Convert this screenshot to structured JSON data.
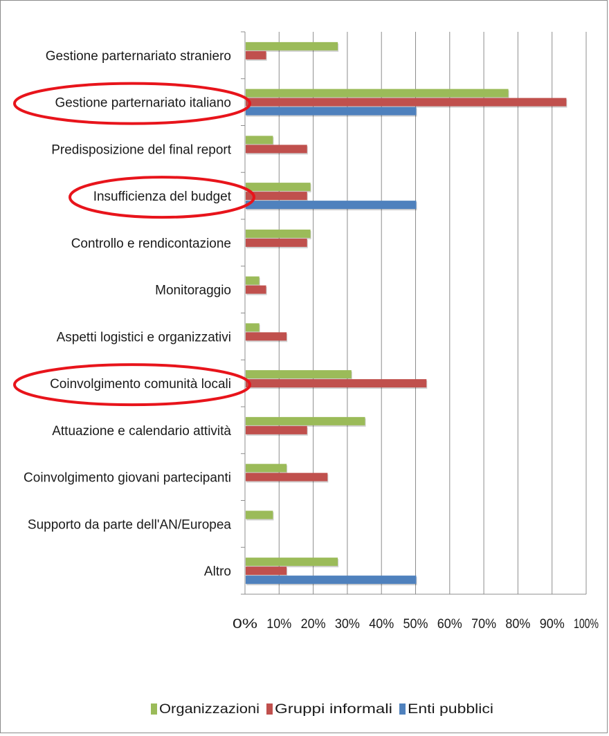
{
  "chart_data": {
    "type": "bar",
    "orientation": "horizontal",
    "categories": [
      "Gestione parternariato straniero",
      "Gestione parternariato italiano",
      "Predisposizione del final report",
      "Insufficienza del budget",
      "Controllo e rendicontazione",
      "Monitoraggio",
      "Aspetti logistici e organizzativi",
      "Coinvolgimento comunità locali",
      "Attuazione e calendario attività",
      "Coinvolgimento giovani partecipanti",
      "Supporto da parte dell'AN/Europea",
      "Altro"
    ],
    "series": [
      {
        "name": "Organizzazioni",
        "color": "#9bbb59",
        "values": [
          27,
          77,
          8,
          19,
          19,
          4,
          4,
          31,
          35,
          12,
          8,
          27
        ]
      },
      {
        "name": "Gruppi informali",
        "color": "#c0504d",
        "values": [
          6,
          94,
          18,
          18,
          18,
          6,
          12,
          53,
          18,
          24,
          0,
          12
        ]
      },
      {
        "name": "Enti pubblici",
        "color": "#4f81bd",
        "values": [
          0,
          50,
          0,
          50,
          0,
          0,
          0,
          0,
          0,
          0,
          0,
          50
        ]
      }
    ],
    "x_ticks": [
      "0%",
      "10%",
      "20%",
      "30%",
      "40%",
      "50%",
      "60%",
      "70%",
      "80%",
      "90%",
      "100%"
    ],
    "xlim": [
      0,
      100
    ],
    "grid": true,
    "legend": "bottom",
    "highlighted_categories": [
      "Gestione parternariato italiano",
      "Insufficienza del budget",
      "Coinvolgimento comunità locali"
    ],
    "highlight_color": "#e8141b"
  }
}
